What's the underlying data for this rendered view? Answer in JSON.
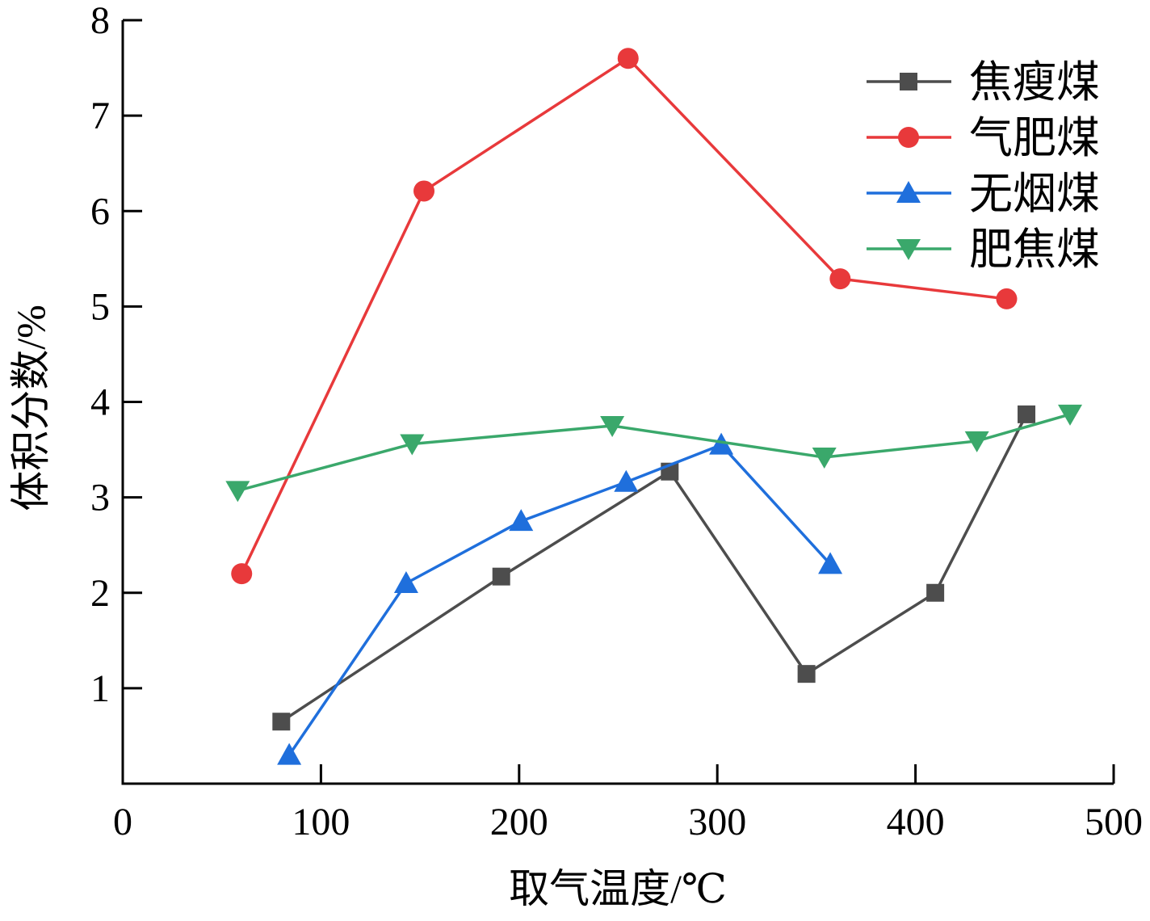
{
  "chart_data": {
    "type": "line",
    "title": "",
    "xlabel": "取气温度/℃",
    "ylabel": "体积分数/%",
    "xlim": [
      0,
      500
    ],
    "ylim": [
      0,
      8
    ],
    "xticks": [
      0,
      100,
      200,
      300,
      400,
      500
    ],
    "yticks": [
      1,
      2,
      3,
      4,
      5,
      6,
      7,
      8
    ],
    "grid": false,
    "legend_position": "top-right",
    "series": [
      {
        "name": "焦瘦煤",
        "color": "#4d4d4d",
        "marker": "square",
        "x": [
          80,
          191,
          276,
          345,
          410,
          456
        ],
        "y": [
          0.65,
          2.17,
          3.27,
          1.15,
          2.0,
          3.87
        ]
      },
      {
        "name": "气肥煤",
        "color": "#e8393b",
        "marker": "circle",
        "x": [
          60,
          152,
          255,
          362,
          446
        ],
        "y": [
          2.2,
          6.21,
          7.6,
          5.29,
          5.08
        ]
      },
      {
        "name": "无烟煤",
        "color": "#1f6fdc",
        "marker": "triangle-up",
        "x": [
          84,
          143,
          201,
          254,
          302,
          357
        ],
        "y": [
          0.3,
          2.1,
          2.75,
          3.16,
          3.55,
          2.3
        ]
      },
      {
        "name": "肥焦煤",
        "color": "#3aa86b",
        "marker": "triangle-down",
        "x": [
          58,
          146,
          247,
          354,
          431,
          478
        ],
        "y": [
          3.07,
          3.56,
          3.75,
          3.42,
          3.59,
          3.87
        ]
      }
    ]
  }
}
